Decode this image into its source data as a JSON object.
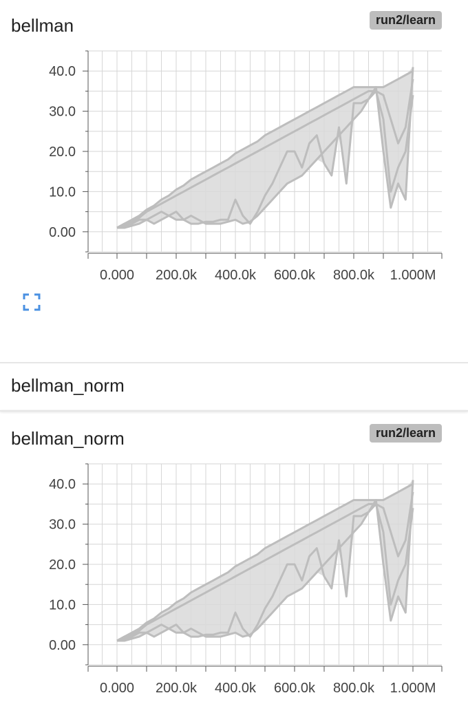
{
  "section_header": "bellman_norm",
  "cards": [
    {
      "title": "bellman",
      "run_tag": "run2/learn",
      "chart_data": {
        "type": "line",
        "xlim": [
          0,
          1000000
        ],
        "ylim": [
          -5,
          45
        ],
        "x_ticks": [
          "0.000",
          "200.0k",
          "400.0k",
          "600.0k",
          "800.0k",
          "1.000M"
        ],
        "y_ticks": [
          "0.00",
          "10.0",
          "20.0",
          "30.0",
          "40.0"
        ],
        "grid": true,
        "series_color": "#bdbdbd",
        "series": [
          {
            "x": [
              0,
              25000,
              50000,
              75000,
              100000,
              125000,
              150000,
              175000,
              200000,
              225000,
              250000,
              275000,
              300000,
              325000,
              350000,
              375000,
              400000,
              425000,
              450000,
              475000,
              500000,
              525000,
              550000,
              575000,
              600000,
              625000,
              650000,
              675000,
              700000,
              725000,
              750000,
              775000,
              800000,
              825000,
              850000,
              875000,
              900000,
              925000,
              950000,
              975000,
              1000000
            ],
            "y": [
              1,
              2,
              3,
              4,
              5.5,
              6.5,
              8,
              9,
              10.5,
              11.5,
              13,
              14,
              15,
              16,
              17,
              18,
              19.5,
              20.5,
              21.5,
              22.5,
              24,
              25,
              26,
              27,
              28,
              29,
              30,
              31,
              32,
              33,
              34,
              35,
              36,
              36,
              36,
              36,
              36,
              37,
              38,
              39,
              40
            ]
          },
          {
            "x": [
              0,
              25000,
              50000,
              75000,
              100000,
              125000,
              150000,
              175000,
              200000,
              225000,
              250000,
              275000,
              300000,
              325000,
              350000,
              375000,
              400000,
              425000,
              450000,
              475000,
              500000,
              525000,
              550000,
              575000,
              600000,
              625000,
              650000,
              675000,
              700000,
              725000,
              750000,
              775000,
              800000,
              825000,
              850000,
              875000,
              900000,
              925000,
              950000,
              975000,
              1000000
            ],
            "y": [
              1,
              1.5,
              2,
              3,
              3,
              4,
              5,
              4,
              3,
              3,
              2,
              2,
              2.5,
              2.5,
              3,
              3,
              8,
              4,
              2,
              5,
              9,
              12,
              16,
              20,
              20,
              16,
              22,
              24,
              17,
              14,
              26,
              12,
              32,
              32,
              33,
              35,
              28,
              10,
              16,
              20,
              34
            ]
          },
          {
            "x": [
              0,
              25000,
              50000,
              75000,
              100000,
              125000,
              150000,
              175000,
              200000,
              225000,
              250000,
              275000,
              300000,
              325000,
              350000,
              375000,
              400000,
              425000,
              450000,
              475000,
              500000,
              525000,
              550000,
              575000,
              600000,
              625000,
              650000,
              675000,
              700000,
              725000,
              750000,
              775000,
              800000,
              825000,
              850000,
              875000,
              900000,
              925000,
              950000,
              975000,
              1000000
            ],
            "y": [
              1,
              2,
              2.5,
              3.5,
              5,
              6,
              7,
              8,
              9,
              10,
              11,
              12,
              13,
              14,
              15,
              16,
              17,
              18,
              19,
              20,
              21,
              22,
              23,
              24,
              25,
              26,
              27,
              28,
              29,
              30,
              31,
              32,
              33,
              34,
              35,
              35,
              34,
              28,
              22,
              26,
              38
            ]
          },
          {
            "x": [
              0,
              25000,
              50000,
              75000,
              100000,
              125000,
              150000,
              175000,
              200000,
              225000,
              250000,
              275000,
              300000,
              325000,
              350000,
              375000,
              400000,
              425000,
              450000,
              475000,
              500000,
              525000,
              550000,
              575000,
              600000,
              625000,
              650000,
              675000,
              700000,
              725000,
              750000,
              775000,
              800000,
              825000,
              850000,
              875000,
              900000,
              925000,
              950000,
              975000,
              1000000
            ],
            "y": [
              1,
              1,
              1.5,
              2,
              3,
              2,
              3,
              4,
              5,
              3,
              4,
              3,
              2,
              2,
              2,
              2.5,
              3,
              2,
              2.5,
              4,
              6,
              8,
              10,
              12,
              13,
              14,
              16,
              18,
              20,
              22,
              24,
              26,
              28,
              30,
              33,
              36,
              20,
              6,
              12,
              8,
              41
            ]
          }
        ]
      }
    },
    {
      "title": "bellman_norm",
      "run_tag": "run2/learn",
      "chart_data": {
        "type": "line",
        "xlim": [
          0,
          1000000
        ],
        "ylim": [
          -5,
          45
        ],
        "x_ticks": [
          "0.000",
          "200.0k",
          "400.0k",
          "600.0k",
          "800.0k",
          "1.000M"
        ],
        "y_ticks": [
          "0.00",
          "10.0",
          "20.0",
          "30.0",
          "40.0"
        ],
        "grid": true,
        "series_color": "#bdbdbd",
        "series": [
          {
            "x": [
              0,
              25000,
              50000,
              75000,
              100000,
              125000,
              150000,
              175000,
              200000,
              225000,
              250000,
              275000,
              300000,
              325000,
              350000,
              375000,
              400000,
              425000,
              450000,
              475000,
              500000,
              525000,
              550000,
              575000,
              600000,
              625000,
              650000,
              675000,
              700000,
              725000,
              750000,
              775000,
              800000,
              825000,
              850000,
              875000,
              900000,
              925000,
              950000,
              975000,
              1000000
            ],
            "y": [
              1,
              2,
              3,
              4,
              5.5,
              6.5,
              8,
              9,
              10.5,
              11.5,
              13,
              14,
              15,
              16,
              17,
              18,
              19.5,
              20.5,
              21.5,
              22.5,
              24,
              25,
              26,
              27,
              28,
              29,
              30,
              31,
              32,
              33,
              34,
              35,
              36,
              36,
              36,
              36,
              36,
              37,
              38,
              39,
              40
            ]
          },
          {
            "x": [
              0,
              25000,
              50000,
              75000,
              100000,
              125000,
              150000,
              175000,
              200000,
              225000,
              250000,
              275000,
              300000,
              325000,
              350000,
              375000,
              400000,
              425000,
              450000,
              475000,
              500000,
              525000,
              550000,
              575000,
              600000,
              625000,
              650000,
              675000,
              700000,
              725000,
              750000,
              775000,
              800000,
              825000,
              850000,
              875000,
              900000,
              925000,
              950000,
              975000,
              1000000
            ],
            "y": [
              1,
              1.5,
              2,
              3,
              3,
              4,
              5,
              4,
              3,
              3,
              2,
              2,
              2.5,
              2.5,
              3,
              3,
              8,
              4,
              2,
              5,
              9,
              12,
              16,
              20,
              20,
              16,
              22,
              24,
              17,
              14,
              26,
              12,
              32,
              32,
              33,
              35,
              28,
              10,
              16,
              20,
              34
            ]
          },
          {
            "x": [
              0,
              25000,
              50000,
              75000,
              100000,
              125000,
              150000,
              175000,
              200000,
              225000,
              250000,
              275000,
              300000,
              325000,
              350000,
              375000,
              400000,
              425000,
              450000,
              475000,
              500000,
              525000,
              550000,
              575000,
              600000,
              625000,
              650000,
              675000,
              700000,
              725000,
              750000,
              775000,
              800000,
              825000,
              850000,
              875000,
              900000,
              925000,
              950000,
              975000,
              1000000
            ],
            "y": [
              1,
              2,
              2.5,
              3.5,
              5,
              6,
              7,
              8,
              9,
              10,
              11,
              12,
              13,
              14,
              15,
              16,
              17,
              18,
              19,
              20,
              21,
              22,
              23,
              24,
              25,
              26,
              27,
              28,
              29,
              30,
              31,
              32,
              33,
              34,
              35,
              35,
              34,
              28,
              22,
              26,
              38
            ]
          },
          {
            "x": [
              0,
              25000,
              50000,
              75000,
              100000,
              125000,
              150000,
              175000,
              200000,
              225000,
              250000,
              275000,
              300000,
              325000,
              350000,
              375000,
              400000,
              425000,
              450000,
              475000,
              500000,
              525000,
              550000,
              575000,
              600000,
              625000,
              650000,
              675000,
              700000,
              725000,
              750000,
              775000,
              800000,
              825000,
              850000,
              875000,
              900000,
              925000,
              950000,
              975000,
              1000000
            ],
            "y": [
              1,
              1,
              1.5,
              2,
              3,
              2,
              3,
              4,
              5,
              3,
              4,
              3,
              2,
              2,
              2,
              2.5,
              3,
              2,
              2.5,
              4,
              6,
              8,
              10,
              12,
              13,
              14,
              16,
              18,
              20,
              22,
              24,
              26,
              28,
              30,
              33,
              36,
              20,
              6,
              12,
              8,
              41
            ]
          }
        ]
      }
    }
  ]
}
